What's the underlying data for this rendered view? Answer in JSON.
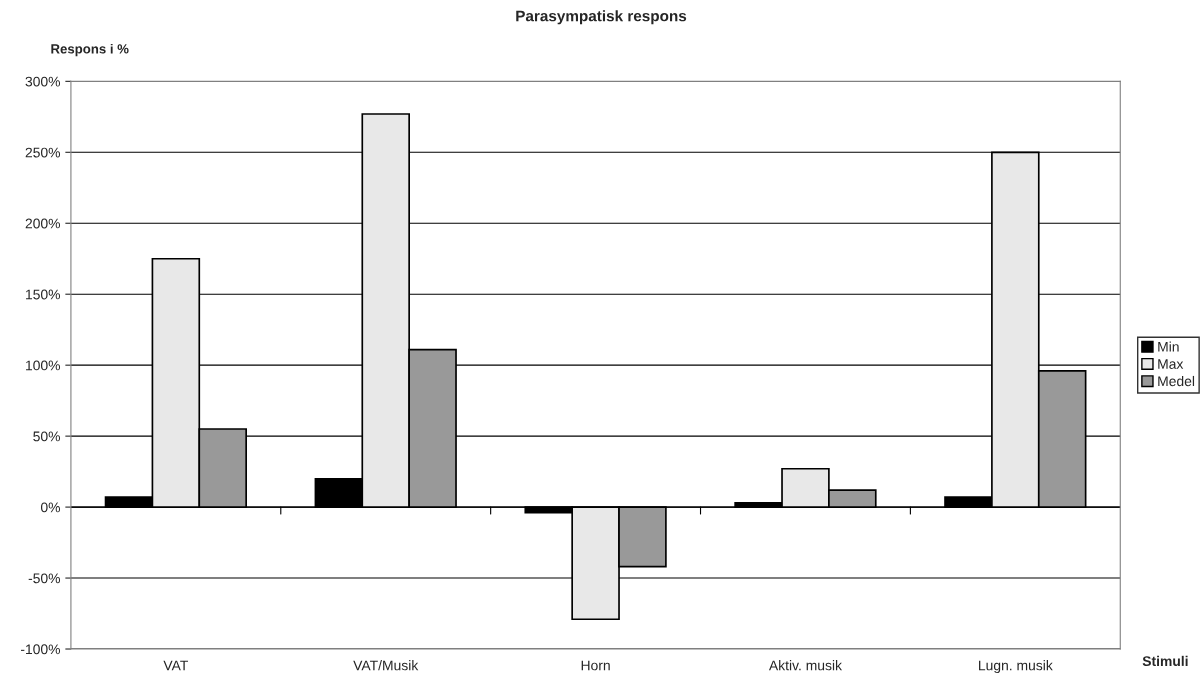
{
  "chart_data": {
    "type": "bar",
    "title": "Parasympatisk respons",
    "ylabel": "Respons i %",
    "xlabel": "Stimuli",
    "categories": [
      "VAT",
      "VAT/Musik",
      "Horn",
      "Aktiv. musik",
      "Lugn. musik"
    ],
    "series": [
      {
        "name": "Min",
        "color": "#000000",
        "values": [
          7,
          20,
          -4,
          3,
          7
        ]
      },
      {
        "name": "Max",
        "color": "#e8e8e8",
        "values": [
          175,
          277,
          -79,
          27,
          250
        ]
      },
      {
        "name": "Medel",
        "color": "#999999",
        "values": [
          55,
          111,
          -42,
          12,
          96
        ]
      }
    ],
    "ylim": [
      -100,
      300
    ],
    "yticks": [
      {
        "value": -100,
        "label": "-100%"
      },
      {
        "value": -50,
        "label": "-50%"
      },
      {
        "value": 0,
        "label": "0%"
      },
      {
        "value": 50,
        "label": "50%"
      },
      {
        "value": 100,
        "label": "100%"
      },
      {
        "value": 150,
        "label": "150%"
      },
      {
        "value": 200,
        "label": "200%"
      },
      {
        "value": 250,
        "label": "250%"
      },
      {
        "value": 300,
        "label": "300%"
      }
    ],
    "grid": "y",
    "legend": "right"
  }
}
